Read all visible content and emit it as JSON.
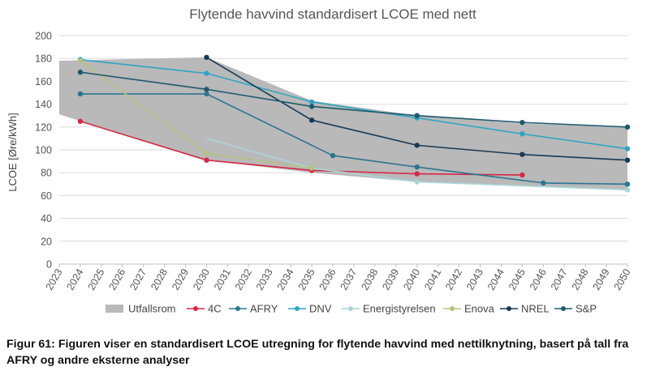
{
  "chart_data": {
    "type": "line",
    "title": "Flytende havvind standardisert LCOE med nett",
    "ylabel": "LCOE [Øre/kWh]",
    "xlabel": "",
    "ylim": [
      0,
      200
    ],
    "yticks": [
      0,
      20,
      40,
      60,
      80,
      100,
      120,
      140,
      160,
      180,
      200
    ],
    "xlim": [
      2023,
      2050
    ],
    "xticks": [
      2023,
      2024,
      2025,
      2026,
      2027,
      2028,
      2029,
      2030,
      2031,
      2032,
      2033,
      2034,
      2035,
      2036,
      2037,
      2038,
      2039,
      2040,
      2041,
      2042,
      2043,
      2044,
      2045,
      2046,
      2047,
      2048,
      2049,
      2050
    ],
    "grid": true,
    "legend_position": "bottom",
    "range_band": {
      "name": "Utfallsrom",
      "color": "#b9b9b9",
      "x": [
        2023,
        2030,
        2035,
        2040,
        2045,
        2050
      ],
      "upper": [
        178,
        181,
        143,
        130,
        123,
        120
      ],
      "lower": [
        131,
        91,
        80,
        72,
        68,
        65
      ]
    },
    "series": [
      {
        "name": "4C",
        "color": "#d62845",
        "x": [
          2024,
          2030,
          2035,
          2040,
          2045
        ],
        "y": [
          125,
          91,
          82,
          79,
          78
        ],
        "markers": [
          true,
          true,
          true,
          true,
          true
        ]
      },
      {
        "name": "AFRY",
        "color": "#2c7591",
        "x": [
          2024,
          2030,
          2036,
          2040,
          2046,
          2050
        ],
        "y": [
          149,
          149,
          95,
          85,
          71,
          70
        ],
        "markers": [
          true,
          true,
          true,
          true,
          true,
          true
        ]
      },
      {
        "name": "DNV",
        "color": "#2ea5c3",
        "x": [
          2024,
          2030,
          2035,
          2040,
          2045,
          2050
        ],
        "y": [
          179,
          167,
          142,
          128,
          114,
          101
        ],
        "markers": [
          true,
          true,
          true,
          true,
          true,
          true
        ]
      },
      {
        "name": "Energistyrelsen",
        "color": "#a8d6d7",
        "x": [
          2030,
          2035,
          2040,
          2050
        ],
        "y": [
          110,
          84,
          72,
          65
        ],
        "markers": [
          false,
          false,
          true,
          true
        ]
      },
      {
        "name": "Enova",
        "color": "#b5c27f",
        "x": [
          2024,
          2030,
          2035
        ],
        "y": [
          178,
          97,
          84
        ],
        "markers": [
          true,
          true,
          true
        ]
      },
      {
        "name": "NREL",
        "color": "#173a55",
        "x": [
          2030,
          2035,
          2040,
          2045,
          2050
        ],
        "y": [
          181,
          126,
          104,
          96,
          91
        ],
        "markers": [
          true,
          true,
          true,
          true,
          true
        ]
      },
      {
        "name": "S&P",
        "color": "#1f5a6b",
        "x": [
          2024,
          2030,
          2035,
          2040,
          2045,
          2050
        ],
        "y": [
          168,
          153,
          138,
          130,
          124,
          120
        ],
        "markers": [
          true,
          true,
          true,
          true,
          true,
          true
        ]
      }
    ]
  },
  "caption": "Figur 61: Figuren viser en standardisert LCOE utregning for flytende havvind med nettilknytning, basert på tall fra AFRY og andre eksterne analyser"
}
